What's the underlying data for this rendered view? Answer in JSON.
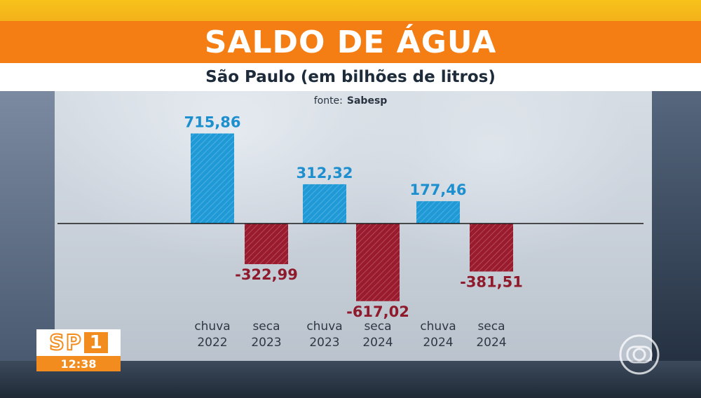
{
  "header": {
    "title": "SALDO DE ÁGUA",
    "subtitle": "São Paulo (em bilhões de litros)"
  },
  "source": {
    "prefix": "fonte:",
    "name": "Sabesp"
  },
  "badge": {
    "logo": "SP",
    "number": "1",
    "time": "12:38"
  },
  "colors": {
    "positive": "#1f9ad6",
    "negative": "#9b1b2e",
    "title_bar": "#f57e14",
    "top_strip": "#f4b21a"
  },
  "chart_data": {
    "type": "bar",
    "categories": [
      "chuva\n2022",
      "seca\n2023",
      "chuva\n2023",
      "seca\n2024",
      "chuva\n2024",
      "seca\n2024"
    ],
    "values": [
      715.86,
      -322.99,
      312.32,
      -617.02,
      177.46,
      -381.51
    ],
    "labels": [
      "715,86",
      "-322,99",
      "312,32",
      "-617,02",
      "177,46",
      "-381,51"
    ],
    "ylim": [
      -700,
      800
    ],
    "grid": false,
    "legend": "none"
  }
}
